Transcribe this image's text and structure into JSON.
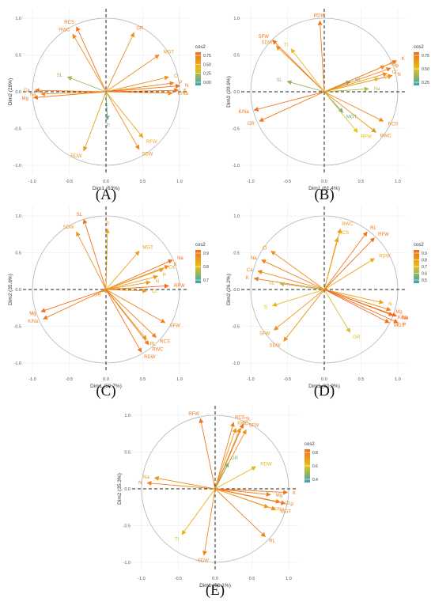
{
  "colors": {
    "low": "#33a6b8",
    "mid": "#e6c01a",
    "high": "#f26b1d",
    "circle": "#b3b3b3",
    "axis": "#222222"
  },
  "chart_data": [
    {
      "panel": "(A)",
      "type": "scatter",
      "subtype": "pca-variable-correlation-circle",
      "xlabel": "Dim1 (63%)",
      "ylabel": "Dim2 (20%)",
      "xlim": [
        -1,
        1
      ],
      "ylim": [
        -1,
        1
      ],
      "x_ticks": [
        "-1.0",
        "-0.5",
        "0.0",
        "0.5",
        "1.0"
      ],
      "y_ticks": [
        "-1.0",
        "-0.5",
        "0.0",
        "0.5",
        "1.0"
      ],
      "legend": {
        "title": "cos2",
        "ticks": [
          "0.75",
          "0.50",
          "0.25",
          "0.00"
        ],
        "position": "right"
      },
      "variables": [
        {
          "name": "RCS",
          "x": -0.4,
          "y": 0.88,
          "cos2": 0.94
        },
        {
          "name": "RWC",
          "x": -0.45,
          "y": 0.78,
          "cos2": 0.81
        },
        {
          "name": "GR",
          "x": 0.38,
          "y": 0.8,
          "cos2": 0.78
        },
        {
          "name": "MGT",
          "x": 0.72,
          "y": 0.5,
          "cos2": 0.77
        },
        {
          "name": "SL",
          "x": -0.52,
          "y": 0.2,
          "cos2": 0.31
        },
        {
          "name": "Cl",
          "x": 0.85,
          "y": 0.2,
          "cos2": 0.76
        },
        {
          "name": "P",
          "x": 0.92,
          "y": 0.12,
          "cos2": 0.86
        },
        {
          "name": "N",
          "x": 1.0,
          "y": 0.08,
          "cos2": 0.99
        },
        {
          "name": "K",
          "x": 0.98,
          "y": 0.02,
          "cos2": 0.96
        },
        {
          "name": "K/Na",
          "x": 0.9,
          "y": -0.02,
          "cos2": 0.81
        },
        {
          "name": "Mg",
          "x": -0.98,
          "y": -0.08,
          "cos2": 0.96
        },
        {
          "name": "Na",
          "x": -0.88,
          "y": -0.03,
          "cos2": 0.77
        },
        {
          "name": "Ca",
          "x": -0.96,
          "y": 0.02,
          "cos2": 0.92
        },
        {
          "name": "RFW",
          "x": 0.5,
          "y": -0.62,
          "cos2": 0.63
        },
        {
          "name": "SDW",
          "x": 0.45,
          "y": -0.78,
          "cos2": 0.81
        },
        {
          "name": "RDW",
          "x": -0.3,
          "y": -0.8,
          "cos2": 0.73
        },
        {
          "name": "Tl",
          "x": 0.02,
          "y": -0.38,
          "cos2": 0.15
        }
      ]
    },
    {
      "panel": "(B)",
      "type": "scatter",
      "subtype": "pca-variable-correlation-circle",
      "xlabel": "Dim1 (61.4%)",
      "ylabel": "Dim2 (20.9%)",
      "xlim": [
        -1,
        1
      ],
      "ylim": [
        -1,
        1
      ],
      "x_ticks": [
        "-1.0",
        "-0.5",
        "0.0",
        "0.5",
        "1.0"
      ],
      "y_ticks": [
        "-1.0",
        "-0.5",
        "0.0",
        "0.5",
        "1.0"
      ],
      "legend": {
        "title": "cos2",
        "ticks": [
          "0.75",
          "0.50",
          "0.25"
        ],
        "position": "right"
      },
      "variables": [
        {
          "name": "RDW",
          "x": -0.06,
          "y": 0.96,
          "cos2": 0.93
        },
        {
          "name": "SFW",
          "x": -0.7,
          "y": 0.7,
          "cos2": 0.98
        },
        {
          "name": "SDW",
          "x": -0.65,
          "y": 0.62,
          "cos2": 0.81
        },
        {
          "name": "Tl",
          "x": -0.45,
          "y": 0.58,
          "cos2": 0.54
        },
        {
          "name": "SL",
          "x": -0.5,
          "y": 0.14,
          "cos2": 0.27
        },
        {
          "name": "RL",
          "x": 0.35,
          "y": 0.14,
          "cos2": 0.14
        },
        {
          "name": "K",
          "x": 0.98,
          "y": 0.42,
          "cos2": 0.98
        },
        {
          "name": "Mg",
          "x": 0.82,
          "y": 0.35,
          "cos2": 0.8
        },
        {
          "name": "P",
          "x": 0.9,
          "y": 0.32,
          "cos2": 0.91
        },
        {
          "name": "Cl",
          "x": 0.85,
          "y": 0.25,
          "cos2": 0.78
        },
        {
          "name": "N",
          "x": 0.92,
          "y": 0.22,
          "cos2": 0.89
        },
        {
          "name": "Ca",
          "x": 0.74,
          "y": 0.18,
          "cos2": 0.58
        },
        {
          "name": "Na",
          "x": 0.6,
          "y": 0.04,
          "cos2": 0.36
        },
        {
          "name": "K/Na",
          "x": -0.95,
          "y": -0.25,
          "cos2": 0.96
        },
        {
          "name": "GR",
          "x": -0.88,
          "y": -0.4,
          "cos2": 0.93
        },
        {
          "name": "MGT",
          "x": 0.25,
          "y": -0.28,
          "cos2": 0.14
        },
        {
          "name": "RFW",
          "x": 0.45,
          "y": -0.55,
          "cos2": 0.5
        },
        {
          "name": "RCS",
          "x": 0.8,
          "y": -0.4,
          "cos2": 0.8
        },
        {
          "name": "RWC",
          "x": 0.7,
          "y": -0.55,
          "cos2": 0.79
        }
      ]
    },
    {
      "panel": "(C)",
      "type": "scatter",
      "subtype": "pca-variable-correlation-circle",
      "xlabel": "Dim1 (59.7%)",
      "ylabel": "Dim2 (35.6%)",
      "xlim": [
        -1,
        1
      ],
      "ylim": [
        -1,
        1
      ],
      "x_ticks": [
        "-1.0",
        "-0.5",
        "0.0",
        "0.5",
        "1.0"
      ],
      "y_ticks": [
        "-1.0",
        "-0.5",
        "0.0",
        "0.5",
        "1.0"
      ],
      "legend": {
        "title": "cos2",
        "ticks": [
          "0.9",
          "0.8",
          "0.7"
        ],
        "position": "right"
      },
      "variables": [
        {
          "name": "SL",
          "x": -0.3,
          "y": 0.95,
          "cos2": 0.99
        },
        {
          "name": "SDW",
          "x": -0.4,
          "y": 0.78,
          "cos2": 0.77
        },
        {
          "name": "Tl",
          "x": 0.02,
          "y": 0.82,
          "cos2": 0.67
        },
        {
          "name": "MGT",
          "x": 0.45,
          "y": 0.52,
          "cos2": 0.69
        },
        {
          "name": "Na",
          "x": 0.9,
          "y": 0.4,
          "cos2": 0.97
        },
        {
          "name": "K",
          "x": 0.85,
          "y": 0.32,
          "cos2": 0.82
        },
        {
          "name": "Ca",
          "x": 0.78,
          "y": 0.28,
          "cos2": 0.69
        },
        {
          "name": "P",
          "x": 0.7,
          "y": 0.18,
          "cos2": 0.72
        },
        {
          "name": "N",
          "x": 0.6,
          "y": 0.1,
          "cos2": 0.71
        },
        {
          "name": "RFW",
          "x": 0.85,
          "y": 0.05,
          "cos2": 0.98
        },
        {
          "name": "Cl",
          "x": 0.55,
          "y": -0.02,
          "cos2": 0.7
        },
        {
          "name": "GR",
          "x": -0.05,
          "y": -0.03,
          "cos2": 0.66
        },
        {
          "name": "Mg",
          "x": -0.88,
          "y": -0.3,
          "cos2": 0.99
        },
        {
          "name": "K/Na",
          "x": -0.85,
          "y": -0.4,
          "cos2": 0.87
        },
        {
          "name": "SFW",
          "x": 0.8,
          "y": -0.45,
          "cos2": 0.84
        },
        {
          "name": "RL",
          "x": 0.55,
          "y": -0.68,
          "cos2": 0.76
        },
        {
          "name": "RCS",
          "x": 0.68,
          "y": -0.65,
          "cos2": 0.89
        },
        {
          "name": "RWC",
          "x": 0.58,
          "y": -0.75,
          "cos2": 0.9
        },
        {
          "name": "RDW",
          "x": 0.48,
          "y": -0.85,
          "cos2": 0.95
        }
      ]
    },
    {
      "panel": "(D)",
      "type": "scatter",
      "subtype": "pca-variable-correlation-circle",
      "xlabel": "Dim1 (60.9%)",
      "ylabel": "Dim2 (26.2%)",
      "xlim": [
        -1,
        1
      ],
      "ylim": [
        -1,
        1
      ],
      "x_ticks": [
        "-1.0",
        "-0.5",
        "0.0",
        "0.5",
        "1.0"
      ],
      "y_ticks": [
        "-1.0",
        "-0.5",
        "0.0",
        "0.5",
        "1.0"
      ],
      "legend": {
        "title": "cos2",
        "ticks": [
          "0.9",
          "0.8",
          "0.7",
          "0.6",
          "0.5"
        ],
        "position": "right"
      },
      "variables": [
        {
          "name": "RWC",
          "x": 0.22,
          "y": 0.82,
          "cos2": 0.72
        },
        {
          "name": "RCS",
          "x": 0.18,
          "y": 0.7,
          "cos2": 0.68
        },
        {
          "name": "RL",
          "x": 0.58,
          "y": 0.78,
          "cos2": 0.94
        },
        {
          "name": "RFW",
          "x": 0.68,
          "y": 0.7,
          "cos2": 0.95
        },
        {
          "name": "RDW",
          "x": 0.68,
          "y": 0.42,
          "cos2": 0.64
        },
        {
          "name": "Cl",
          "x": -0.72,
          "y": 0.52,
          "cos2": 0.79
        },
        {
          "name": "Na",
          "x": -0.85,
          "y": 0.4,
          "cos2": 0.88
        },
        {
          "name": "Ca",
          "x": -0.9,
          "y": 0.25,
          "cos2": 0.87
        },
        {
          "name": "K",
          "x": -0.95,
          "y": 0.15,
          "cos2": 0.92
        },
        {
          "name": "SL",
          "x": -0.6,
          "y": 0.08,
          "cos2": 0.37
        },
        {
          "name": "Tl",
          "x": -0.7,
          "y": -0.22,
          "cos2": 0.54
        },
        {
          "name": "SFW",
          "x": -0.68,
          "y": -0.55,
          "cos2": 0.77
        },
        {
          "name": "SDW",
          "x": -0.55,
          "y": -0.7,
          "cos2": 0.79
        },
        {
          "name": "GR",
          "x": 0.35,
          "y": -0.58,
          "cos2": 0.46
        },
        {
          "name": "N",
          "x": 0.8,
          "y": -0.18,
          "cos2": 0.67
        },
        {
          "name": "Mg",
          "x": 0.9,
          "y": -0.28,
          "cos2": 0.89
        },
        {
          "name": "K/Na",
          "x": 0.93,
          "y": -0.35,
          "cos2": 0.99
        },
        {
          "name": "Na",
          "x": 0.98,
          "y": -0.36,
          "cos2": 0.99
        },
        {
          "name": "MGT",
          "x": 0.88,
          "y": -0.45,
          "cos2": 0.98
        },
        {
          "name": "P",
          "x": 1.0,
          "y": -0.45,
          "cos2": 0.99
        }
      ]
    },
    {
      "panel": "(E)",
      "type": "scatter",
      "subtype": "pca-variable-correlation-circle",
      "xlabel": "Dim1 (56.1%)",
      "ylabel": "Dim2 (35.3%)",
      "xlim": [
        -1,
        1
      ],
      "ylim": [
        -1,
        1
      ],
      "x_ticks": [
        "-1.0",
        "-0.5",
        "0.0",
        "0.5",
        "1.0"
      ],
      "y_ticks": [
        "-1.0",
        "-0.5",
        "0.0",
        "0.5",
        "1.0"
      ],
      "legend": {
        "title": "cos2",
        "ticks": [
          "0.8",
          "0.6",
          "0.4"
        ],
        "position": "right"
      },
      "variables": [
        {
          "name": "RFW",
          "x": -0.2,
          "y": 0.95,
          "cos2": 0.94
        },
        {
          "name": "RCS",
          "x": 0.25,
          "y": 0.9,
          "cos2": 0.88
        },
        {
          "name": "SL",
          "x": 0.38,
          "y": 0.88,
          "cos2": 0.92
        },
        {
          "name": "RWC",
          "x": 0.28,
          "y": 0.82,
          "cos2": 0.76
        },
        {
          "name": "Tl",
          "x": 0.34,
          "y": 0.82,
          "cos2": 0.8
        },
        {
          "name": "SFW",
          "x": 0.42,
          "y": 0.8,
          "cos2": 0.82
        },
        {
          "name": "GR",
          "x": 0.18,
          "y": 0.35,
          "cos2": 0.24
        },
        {
          "name": "RDW",
          "x": 0.55,
          "y": 0.3,
          "cos2": 0.57
        },
        {
          "name": "Na",
          "x": -0.82,
          "y": 0.15,
          "cos2": 0.77
        },
        {
          "name": "N",
          "x": -0.92,
          "y": 0.08,
          "cos2": 0.88
        },
        {
          "name": "Mg",
          "x": 0.75,
          "y": -0.08,
          "cos2": 0.87
        },
        {
          "name": "K",
          "x": 0.98,
          "y": -0.05,
          "cos2": 0.96
        },
        {
          "name": "Cl",
          "x": 0.88,
          "y": -0.18,
          "cos2": 0.88
        },
        {
          "name": "P",
          "x": 0.95,
          "y": -0.2,
          "cos2": 0.94
        },
        {
          "name": "MGT",
          "x": 0.82,
          "y": -0.28,
          "cos2": 0.81
        },
        {
          "name": "K/Na",
          "x": 0.72,
          "y": -0.25,
          "cos2": 0.75
        },
        {
          "name": "RL",
          "x": 0.68,
          "y": -0.65,
          "cos2": 0.89
        },
        {
          "name": "Tl",
          "x": -0.45,
          "y": -0.62,
          "cos2": 0.59
        },
        {
          "name": "SDW",
          "x": -0.15,
          "y": -0.9,
          "cos2": 0.83
        }
      ]
    }
  ]
}
